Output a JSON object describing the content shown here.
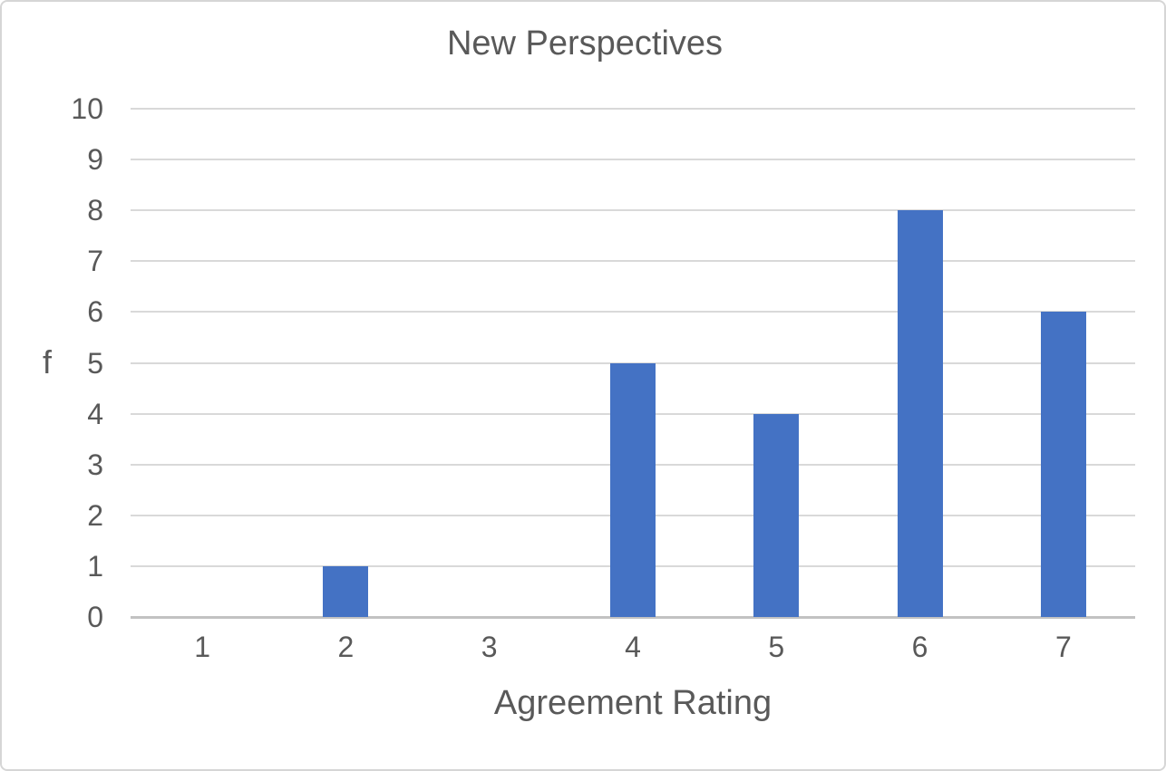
{
  "chart_data": {
    "type": "bar",
    "title": "New Perspectives",
    "xlabel": "Agreement Rating",
    "ylabel": "f",
    "categories": [
      "1",
      "2",
      "3",
      "4",
      "5",
      "6",
      "7"
    ],
    "values": [
      0,
      1,
      0,
      5,
      4,
      8,
      6
    ],
    "ylim": [
      0,
      10
    ],
    "yticks": [
      0,
      1,
      2,
      3,
      4,
      5,
      6,
      7,
      8,
      9,
      10
    ],
    "grid": "horizontal",
    "legend": "none",
    "colors": {
      "bar": "#4472C4",
      "gridline": "#D9D9D9",
      "axis_line": "#C2C2C2",
      "text": "#595959",
      "background": "#FFFFFF",
      "frame_border": "#D6D6D6"
    }
  }
}
